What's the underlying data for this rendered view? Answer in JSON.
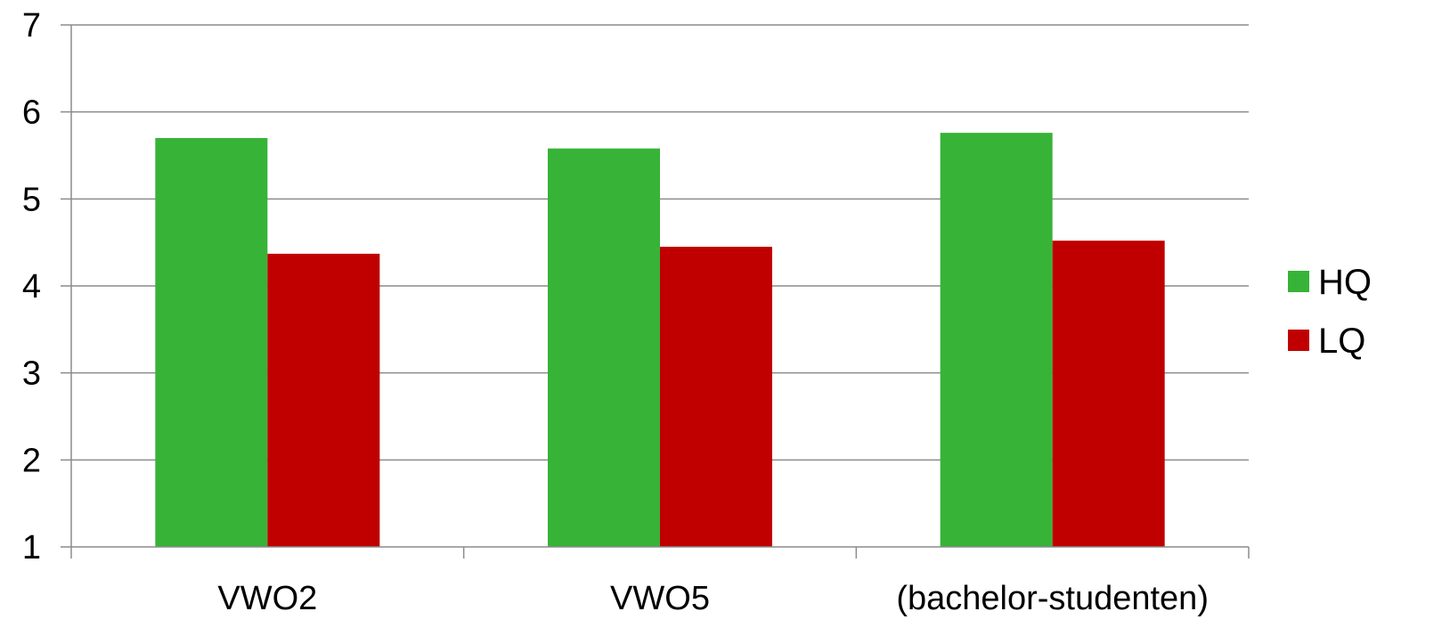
{
  "chart_data": {
    "type": "bar",
    "categories": [
      "VWO2",
      "VWO5",
      "(bachelor-studenten)"
    ],
    "series": [
      {
        "name": "HQ",
        "values": [
          5.7,
          5.58,
          5.76
        ]
      },
      {
        "name": "LQ",
        "values": [
          4.37,
          4.45,
          4.52
        ]
      }
    ],
    "title": "",
    "xlabel": "",
    "ylabel": "",
    "ylim": [
      1,
      7
    ],
    "yticks": [
      1,
      2,
      3,
      4,
      5,
      6,
      7
    ],
    "grid": true,
    "legend": "right",
    "colors": {
      "HQ": "#37b337",
      "LQ": "#c00000",
      "grid": "#8c8c8c",
      "axis": "#8c8c8c"
    }
  }
}
